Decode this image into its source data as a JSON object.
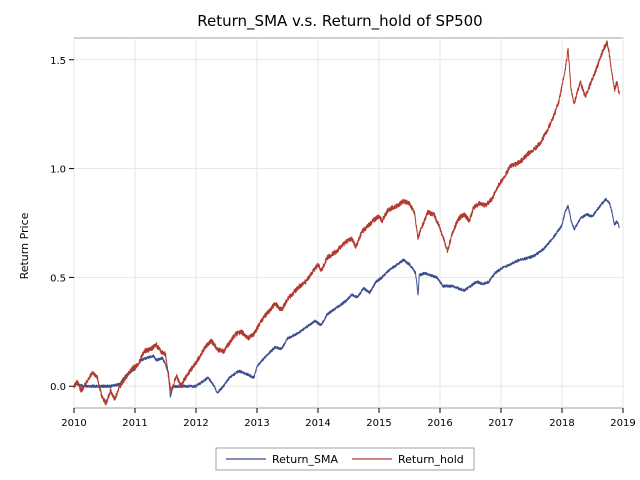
{
  "chart_data": {
    "type": "line",
    "title": "Return_SMA v.s. Return_hold of SP500",
    "xlabel": "",
    "ylabel": "Return Price",
    "xlim": [
      2010,
      2019
    ],
    "ylim": [
      -0.1,
      1.6
    ],
    "x_ticks": [
      "2010",
      "2011",
      "2012",
      "2013",
      "2014",
      "2015",
      "2016",
      "2017",
      "2018",
      "2019"
    ],
    "y_ticks": [
      "0.0",
      "0.5",
      "1.0",
      "1.5"
    ],
    "grid": true,
    "legend_position": "bottom",
    "series": [
      {
        "name": "Return_SMA",
        "color": "#3b4c8f",
        "points": [
          [
            2010.0,
            0.0
          ],
          [
            2010.05,
            0.01
          ],
          [
            2010.15,
            0.0
          ],
          [
            2010.3,
            0.0
          ],
          [
            2010.5,
            0.0
          ],
          [
            2010.6,
            0.0
          ],
          [
            2010.75,
            0.01
          ],
          [
            2010.85,
            0.05
          ],
          [
            2011.0,
            0.08
          ],
          [
            2011.1,
            0.12
          ],
          [
            2011.2,
            0.13
          ],
          [
            2011.3,
            0.14
          ],
          [
            2011.35,
            0.12
          ],
          [
            2011.45,
            0.13
          ],
          [
            2011.5,
            0.1
          ],
          [
            2011.55,
            0.06
          ],
          [
            2011.58,
            -0.05
          ],
          [
            2011.62,
            0.0
          ],
          [
            2011.8,
            0.0
          ],
          [
            2012.0,
            0.0
          ],
          [
            2012.1,
            0.02
          ],
          [
            2012.2,
            0.04
          ],
          [
            2012.3,
            0.0
          ],
          [
            2012.35,
            -0.03
          ],
          [
            2012.45,
            0.0
          ],
          [
            2012.55,
            0.04
          ],
          [
            2012.7,
            0.07
          ],
          [
            2012.8,
            0.06
          ],
          [
            2012.95,
            0.04
          ],
          [
            2013.0,
            0.09
          ],
          [
            2013.15,
            0.14
          ],
          [
            2013.3,
            0.18
          ],
          [
            2013.4,
            0.17
          ],
          [
            2013.5,
            0.22
          ],
          [
            2013.65,
            0.24
          ],
          [
            2013.8,
            0.27
          ],
          [
            2013.95,
            0.3
          ],
          [
            2014.05,
            0.28
          ],
          [
            2014.15,
            0.33
          ],
          [
            2014.3,
            0.36
          ],
          [
            2014.45,
            0.39
          ],
          [
            2014.55,
            0.42
          ],
          [
            2014.65,
            0.41
          ],
          [
            2014.75,
            0.45
          ],
          [
            2014.85,
            0.43
          ],
          [
            2014.95,
            0.48
          ],
          [
            2015.05,
            0.5
          ],
          [
            2015.15,
            0.53
          ],
          [
            2015.3,
            0.56
          ],
          [
            2015.4,
            0.58
          ],
          [
            2015.5,
            0.56
          ],
          [
            2015.6,
            0.52
          ],
          [
            2015.64,
            0.42
          ],
          [
            2015.66,
            0.51
          ],
          [
            2015.75,
            0.52
          ],
          [
            2015.85,
            0.51
          ],
          [
            2015.95,
            0.5
          ],
          [
            2016.05,
            0.46
          ],
          [
            2016.2,
            0.46
          ],
          [
            2016.3,
            0.45
          ],
          [
            2016.4,
            0.44
          ],
          [
            2016.5,
            0.46
          ],
          [
            2016.6,
            0.48
          ],
          [
            2016.7,
            0.47
          ],
          [
            2016.8,
            0.48
          ],
          [
            2016.9,
            0.52
          ],
          [
            2017.0,
            0.54
          ],
          [
            2017.15,
            0.56
          ],
          [
            2017.3,
            0.58
          ],
          [
            2017.45,
            0.59
          ],
          [
            2017.55,
            0.6
          ],
          [
            2017.7,
            0.63
          ],
          [
            2017.85,
            0.68
          ],
          [
            2018.0,
            0.74
          ],
          [
            2018.05,
            0.8
          ],
          [
            2018.1,
            0.83
          ],
          [
            2018.15,
            0.76
          ],
          [
            2018.2,
            0.72
          ],
          [
            2018.3,
            0.77
          ],
          [
            2018.4,
            0.79
          ],
          [
            2018.5,
            0.78
          ],
          [
            2018.6,
            0.82
          ],
          [
            2018.72,
            0.86
          ],
          [
            2018.78,
            0.84
          ],
          [
            2018.82,
            0.8
          ],
          [
            2018.86,
            0.74
          ],
          [
            2018.9,
            0.76
          ],
          [
            2018.94,
            0.73
          ]
        ]
      },
      {
        "name": "Return_hold",
        "color": "#b03a2e",
        "points": [
          [
            2010.0,
            0.0
          ],
          [
            2010.05,
            0.02
          ],
          [
            2010.12,
            -0.02
          ],
          [
            2010.2,
            0.02
          ],
          [
            2010.3,
            0.06
          ],
          [
            2010.38,
            0.04
          ],
          [
            2010.45,
            -0.04
          ],
          [
            2010.52,
            -0.08
          ],
          [
            2010.6,
            -0.02
          ],
          [
            2010.67,
            -0.06
          ],
          [
            2010.75,
            0.0
          ],
          [
            2010.85,
            0.04
          ],
          [
            2010.95,
            0.08
          ],
          [
            2011.05,
            0.1
          ],
          [
            2011.15,
            0.16
          ],
          [
            2011.25,
            0.17
          ],
          [
            2011.35,
            0.19
          ],
          [
            2011.42,
            0.16
          ],
          [
            2011.5,
            0.15
          ],
          [
            2011.56,
            0.02
          ],
          [
            2011.6,
            -0.02
          ],
          [
            2011.68,
            0.05
          ],
          [
            2011.75,
            0.0
          ],
          [
            2011.85,
            0.05
          ],
          [
            2011.95,
            0.09
          ],
          [
            2012.05,
            0.13
          ],
          [
            2012.15,
            0.18
          ],
          [
            2012.25,
            0.21
          ],
          [
            2012.35,
            0.17
          ],
          [
            2012.45,
            0.16
          ],
          [
            2012.55,
            0.2
          ],
          [
            2012.65,
            0.24
          ],
          [
            2012.75,
            0.25
          ],
          [
            2012.85,
            0.22
          ],
          [
            2012.95,
            0.24
          ],
          [
            2013.05,
            0.29
          ],
          [
            2013.15,
            0.33
          ],
          [
            2013.3,
            0.38
          ],
          [
            2013.4,
            0.35
          ],
          [
            2013.5,
            0.4
          ],
          [
            2013.6,
            0.43
          ],
          [
            2013.7,
            0.46
          ],
          [
            2013.8,
            0.48
          ],
          [
            2013.9,
            0.52
          ],
          [
            2014.0,
            0.56
          ],
          [
            2014.05,
            0.53
          ],
          [
            2014.15,
            0.59
          ],
          [
            2014.3,
            0.62
          ],
          [
            2014.45,
            0.66
          ],
          [
            2014.55,
            0.68
          ],
          [
            2014.62,
            0.64
          ],
          [
            2014.72,
            0.71
          ],
          [
            2014.8,
            0.73
          ],
          [
            2014.9,
            0.76
          ],
          [
            2015.0,
            0.78
          ],
          [
            2015.05,
            0.76
          ],
          [
            2015.15,
            0.81
          ],
          [
            2015.3,
            0.83
          ],
          [
            2015.4,
            0.85
          ],
          [
            2015.5,
            0.84
          ],
          [
            2015.58,
            0.8
          ],
          [
            2015.64,
            0.68
          ],
          [
            2015.7,
            0.73
          ],
          [
            2015.8,
            0.8
          ],
          [
            2015.9,
            0.79
          ],
          [
            2015.98,
            0.74
          ],
          [
            2016.08,
            0.66
          ],
          [
            2016.12,
            0.62
          ],
          [
            2016.2,
            0.7
          ],
          [
            2016.3,
            0.77
          ],
          [
            2016.4,
            0.79
          ],
          [
            2016.48,
            0.76
          ],
          [
            2016.55,
            0.82
          ],
          [
            2016.65,
            0.84
          ],
          [
            2016.75,
            0.83
          ],
          [
            2016.85,
            0.86
          ],
          [
            2016.95,
            0.92
          ],
          [
            2017.05,
            0.96
          ],
          [
            2017.15,
            1.01
          ],
          [
            2017.25,
            1.02
          ],
          [
            2017.35,
            1.04
          ],
          [
            2017.45,
            1.07
          ],
          [
            2017.55,
            1.09
          ],
          [
            2017.65,
            1.12
          ],
          [
            2017.75,
            1.17
          ],
          [
            2017.85,
            1.23
          ],
          [
            2017.95,
            1.31
          ],
          [
            2018.05,
            1.45
          ],
          [
            2018.1,
            1.55
          ],
          [
            2018.15,
            1.36
          ],
          [
            2018.2,
            1.3
          ],
          [
            2018.3,
            1.4
          ],
          [
            2018.38,
            1.33
          ],
          [
            2018.48,
            1.4
          ],
          [
            2018.58,
            1.47
          ],
          [
            2018.68,
            1.55
          ],
          [
            2018.74,
            1.58
          ],
          [
            2018.78,
            1.52
          ],
          [
            2018.82,
            1.43
          ],
          [
            2018.86,
            1.36
          ],
          [
            2018.9,
            1.4
          ],
          [
            2018.94,
            1.34
          ]
        ]
      }
    ]
  }
}
